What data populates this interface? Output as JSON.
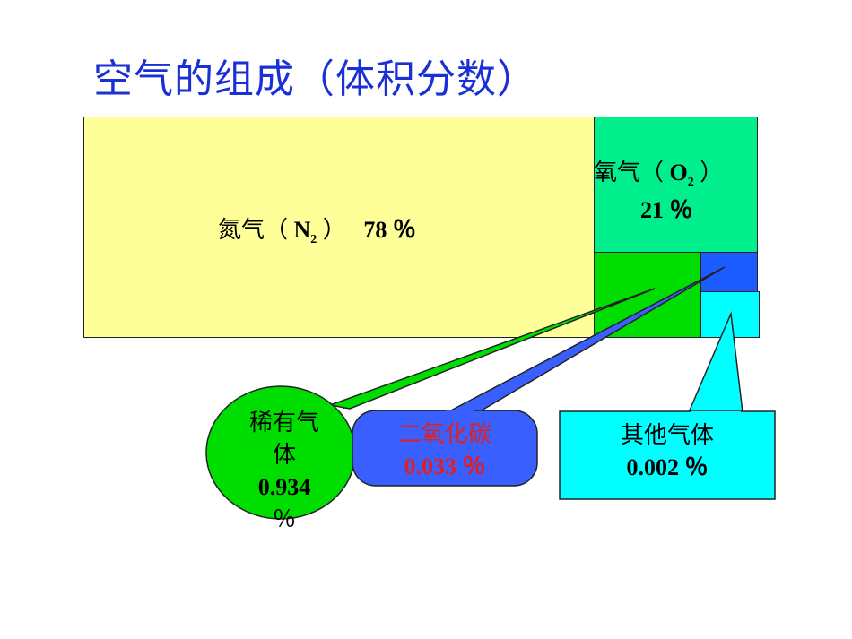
{
  "title": "空气的组成（体积分数）",
  "nitrogen": {
    "name": "氮气（",
    "formula": "N",
    "sub": "2",
    "close": "）",
    "percent": "78 ％"
  },
  "oxygen": {
    "name": "氧气（",
    "formula": "O",
    "sub": "2",
    "close": "）",
    "percent": "21 ％"
  },
  "rare_gas": {
    "line1": "稀有气",
    "line2": "体",
    "value": "0.934",
    "unit": "％"
  },
  "co2": {
    "name": "二氧化碳",
    "percent": "0.033 ％"
  },
  "other": {
    "name": "其他气体",
    "percent": "0.002 ％"
  },
  "colors": {
    "nitrogen": "#ffff99",
    "oxygen": "#00ee8c",
    "rare_gas": "#00dd00",
    "co2": "#1c5bff",
    "other": "#00ffff",
    "title": "#1a2fd6",
    "co2_text": "#e02020"
  }
}
